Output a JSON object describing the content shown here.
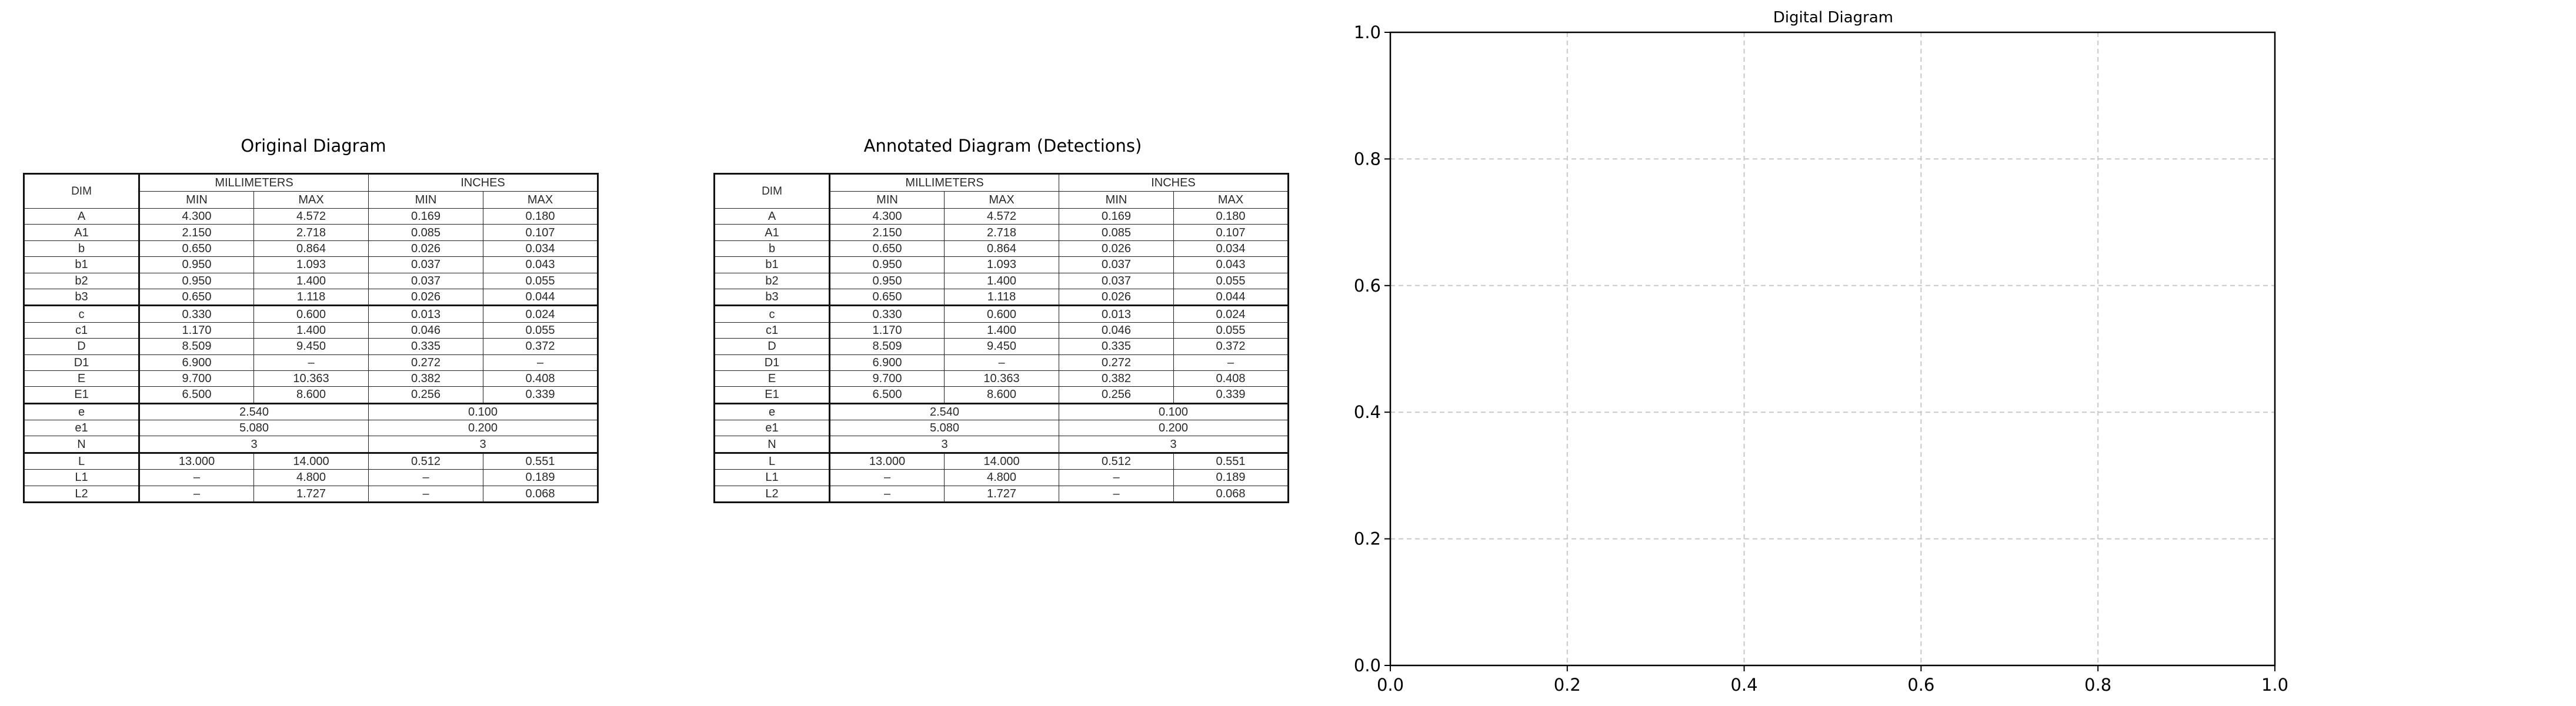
{
  "titles": {
    "original": "Original Diagram",
    "annotated": "Annotated Diagram (Detections)",
    "digital": "Digital Diagram"
  },
  "table": {
    "dim_header": "DIM",
    "mm_header": "MILLIMETERS",
    "in_header": "INCHES",
    "sub_headers": [
      "MIN",
      "MAX",
      "MIN",
      "MAX"
    ],
    "rows": [
      {
        "dim": "A",
        "cells": [
          "4.300",
          "4.572",
          "0.169",
          "0.180"
        ]
      },
      {
        "dim": "A1",
        "cells": [
          "2.150",
          "2.718",
          "0.085",
          "0.107"
        ]
      },
      {
        "dim": "b",
        "cells": [
          "0.650",
          "0.864",
          "0.026",
          "0.034"
        ]
      },
      {
        "dim": "b1",
        "cells": [
          "0.950",
          "1.093",
          "0.037",
          "0.043"
        ]
      },
      {
        "dim": "b2",
        "cells": [
          "0.950",
          "1.400",
          "0.037",
          "0.055"
        ]
      },
      {
        "dim": "b3",
        "cells": [
          "0.650",
          "1.118",
          "0.026",
          "0.044"
        ]
      },
      {
        "dim": "c",
        "cells": [
          "0.330",
          "0.600",
          "0.013",
          "0.024"
        ]
      },
      {
        "dim": "c1",
        "cells": [
          "1.170",
          "1.400",
          "0.046",
          "0.055"
        ]
      },
      {
        "dim": "D",
        "cells": [
          "8.509",
          "9.450",
          "0.335",
          "0.372"
        ]
      },
      {
        "dim": "D1",
        "cells": [
          "6.900",
          "–",
          "0.272",
          "–"
        ]
      },
      {
        "dim": "E",
        "cells": [
          "9.700",
          "10.363",
          "0.382",
          "0.408"
        ]
      },
      {
        "dim": "E1",
        "cells": [
          "6.500",
          "8.600",
          "0.256",
          "0.339"
        ]
      },
      {
        "dim": "e",
        "merged": [
          "2.540",
          "0.100"
        ]
      },
      {
        "dim": "e1",
        "merged": [
          "5.080",
          "0.200"
        ]
      },
      {
        "dim": "N",
        "merged": [
          "3",
          "3"
        ]
      },
      {
        "dim": "L",
        "cells": [
          "13.000",
          "14.000",
          "0.512",
          "0.551"
        ]
      },
      {
        "dim": "L1",
        "cells": [
          "–",
          "4.800",
          "–",
          "0.189"
        ]
      },
      {
        "dim": "L2",
        "cells": [
          "–",
          "1.727",
          "–",
          "0.068"
        ]
      }
    ]
  },
  "axes": {
    "xlim": [
      0.0,
      1.0
    ],
    "ylim": [
      0.0,
      1.0
    ],
    "x_ticks": [
      "0.0",
      "0.2",
      "0.4",
      "0.6",
      "0.8",
      "1.0"
    ],
    "y_ticks": [
      "0.0",
      "0.2",
      "0.4",
      "0.6",
      "0.8",
      "1.0"
    ],
    "grid": true,
    "grid_color": "#c8c8c8"
  }
}
